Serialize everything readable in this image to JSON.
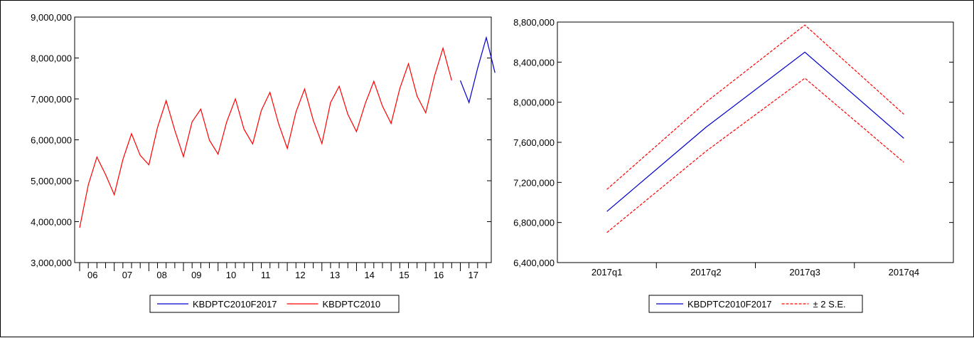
{
  "chart_data": [
    {
      "type": "line",
      "title": "",
      "xlabel": "",
      "ylabel": "",
      "ylim": [
        3000000,
        9000000
      ],
      "yticks": [
        "9,000,000",
        "8,000,000",
        "7,000,000",
        "6,000,000",
        "5,000,000",
        "4,000,000",
        "3,000,000"
      ],
      "ytick_values": [
        9000000,
        8000000,
        7000000,
        6000000,
        5000000,
        4000000,
        3000000
      ],
      "xticks": [
        "06",
        "07",
        "08",
        "09",
        "10",
        "11",
        "12",
        "13",
        "14",
        "15",
        "16",
        "17"
      ],
      "grid": false,
      "legend_position": "bottom",
      "series": [
        {
          "name": "KBDPTC2010F2017",
          "color": "#0000cc",
          "start_quarter": 44,
          "values": [
            7450000,
            6910000,
            7750000,
            8500000,
            7640000
          ]
        },
        {
          "name": "KBDPTC2010",
          "color": "#ff0000",
          "start_quarter": 0,
          "values": [
            3850000,
            4900000,
            5580000,
            5150000,
            4660000,
            5520000,
            6150000,
            5620000,
            5390000,
            6300000,
            6960000,
            6230000,
            5590000,
            6440000,
            6750000,
            5990000,
            5650000,
            6440000,
            7000000,
            6260000,
            5900000,
            6720000,
            7160000,
            6390000,
            5790000,
            6680000,
            7240000,
            6480000,
            5910000,
            6910000,
            7310000,
            6620000,
            6200000,
            6880000,
            7430000,
            6820000,
            6400000,
            7250000,
            7860000,
            7070000,
            6660000,
            7550000,
            8240000,
            7450000
          ]
        }
      ]
    },
    {
      "type": "line",
      "title": "",
      "xlabel": "",
      "ylabel": "",
      "ylim": [
        6400000,
        8800000
      ],
      "yticks": [
        "8,800,000",
        "8,400,000",
        "8,000,000",
        "7,600,000",
        "7,200,000",
        "6,800,000",
        "6,400,000"
      ],
      "ytick_values": [
        8800000,
        8400000,
        8000000,
        7600000,
        7200000,
        6800000,
        6400000
      ],
      "categories": [
        "2017q1",
        "2017q2",
        "2017q3",
        "2017q4"
      ],
      "grid": false,
      "legend_position": "bottom",
      "series": [
        {
          "name": "KBDPTC2010F2017",
          "color": "#0000cc",
          "dashed": false,
          "values": [
            6910000,
            7750000,
            8500000,
            7640000
          ]
        },
        {
          "name": "± 2 S.E.",
          "color": "#ff0000",
          "dashed": true,
          "values": [
            7130000,
            8000000,
            8770000,
            7880000
          ]
        },
        {
          "name": "",
          "color": "#ff0000",
          "dashed": true,
          "values": [
            6700000,
            7510000,
            8240000,
            7400000
          ]
        }
      ]
    }
  ]
}
